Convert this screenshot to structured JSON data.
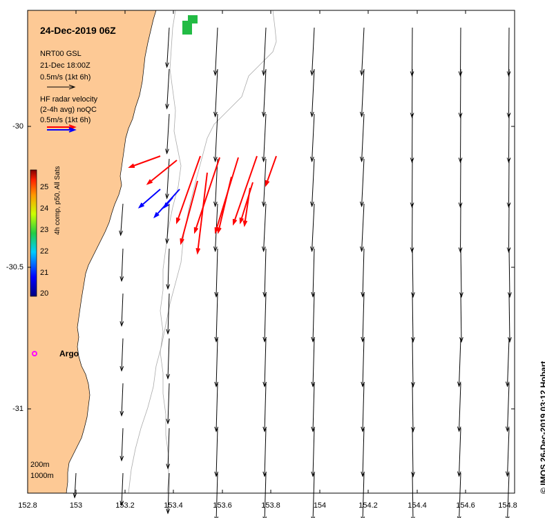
{
  "map": {
    "title": "24-Dec-2019 06Z",
    "model_legend": {
      "line1": "NRT00 GSL",
      "line2": "21-Dec 18:00Z",
      "line3": "0.5m/s (1kt 6h)"
    },
    "radar_legend": {
      "line1": "HF radar velocity",
      "line2": "(2-4h avg) noQC",
      "line3": "0.5m/s (1kt 6h)"
    },
    "colorbar": {
      "label": "4h comp, p50, All Sats",
      "ticks": [
        "25",
        "24",
        "23",
        "22",
        "21",
        "20"
      ]
    },
    "argo_label": "Argo",
    "contour_legend": {
      "line1": "200m",
      "line2": "1000m"
    },
    "credit": "© IMOS 26-Dec-2019 03:12 Hobart",
    "x_ticks": [
      "152.8",
      "153",
      "153.2",
      "153.4",
      "153.6",
      "153.8",
      "154",
      "154.2",
      "154.4",
      "154.6",
      "154.8"
    ],
    "y_ticks": [
      "-30",
      "-30.5",
      "-31"
    ],
    "colors": {
      "land": "#fdc995",
      "radar_red": "#ff0000",
      "radar_blue": "#0000ff",
      "argo": "#ff00ff",
      "sst_green": "#22bb44",
      "contour": "#aaaaaa"
    }
  }
}
